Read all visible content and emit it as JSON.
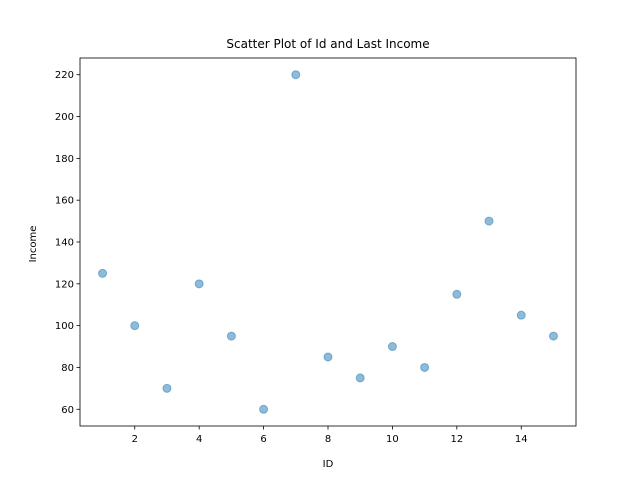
{
  "chart_data": {
    "type": "scatter",
    "title": "Scatter Plot of Id and Last Income",
    "xlabel": "ID",
    "ylabel": "Income",
    "xlim": [
      0.3,
      15.7
    ],
    "ylim": [
      52,
      228
    ],
    "xticks": [
      2,
      4,
      6,
      8,
      10,
      12,
      14
    ],
    "yticks": [
      60,
      80,
      100,
      120,
      140,
      160,
      180,
      200,
      220
    ],
    "grid": false,
    "point_color": "#1f77b4",
    "points": [
      {
        "x": 1,
        "y": 125
      },
      {
        "x": 2,
        "y": 100
      },
      {
        "x": 3,
        "y": 70
      },
      {
        "x": 4,
        "y": 120
      },
      {
        "x": 5,
        "y": 95
      },
      {
        "x": 6,
        "y": 60
      },
      {
        "x": 7,
        "y": 220
      },
      {
        "x": 8,
        "y": 85
      },
      {
        "x": 9,
        "y": 75
      },
      {
        "x": 10,
        "y": 90
      },
      {
        "x": 11,
        "y": 80
      },
      {
        "x": 12,
        "y": 115
      },
      {
        "x": 13,
        "y": 150
      },
      {
        "x": 14,
        "y": 105
      },
      {
        "x": 15,
        "y": 95
      }
    ]
  }
}
